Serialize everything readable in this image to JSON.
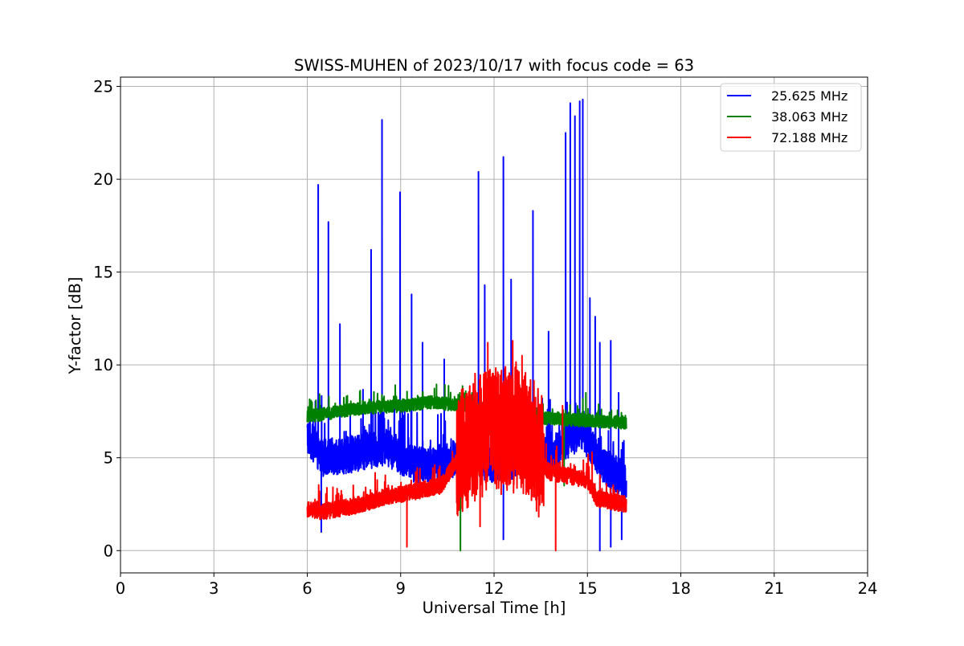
{
  "chart_data": {
    "type": "line",
    "title": "SWISS-MUHEN of 2023/10/17 with focus code = 63",
    "xlabel": "Universal Time [h]",
    "ylabel": "Y-factor [dB]",
    "xlim": [
      0,
      24
    ],
    "ylim": [
      -1.2,
      25.5
    ],
    "xticks": [
      0,
      3,
      6,
      9,
      12,
      15,
      18,
      21,
      24
    ],
    "yticks": [
      0,
      5,
      10,
      15,
      20,
      25
    ],
    "grid": true,
    "legend_position": "top-right",
    "series": [
      {
        "name": "25.625 MHz",
        "color": "#0000ff",
        "baseline": [
          [
            6.0,
            6.2
          ],
          [
            6.5,
            5.0
          ],
          [
            7.5,
            5.2
          ],
          [
            8.5,
            5.6
          ],
          [
            9.5,
            4.6
          ],
          [
            10.5,
            4.8
          ],
          [
            11.0,
            5.2
          ],
          [
            12.0,
            4.6
          ],
          [
            13.0,
            5.0
          ],
          [
            14.0,
            5.4
          ],
          [
            14.8,
            6.5
          ],
          [
            15.5,
            4.6
          ],
          [
            16.2,
            3.8
          ]
        ],
        "noise": 1.0,
        "spikes": [
          [
            6.35,
            19.7
          ],
          [
            6.68,
            17.7
          ],
          [
            7.05,
            12.2
          ],
          [
            8.05,
            16.2
          ],
          [
            8.4,
            23.2
          ],
          [
            8.98,
            19.3
          ],
          [
            9.35,
            13.8
          ],
          [
            9.7,
            11.2
          ],
          [
            10.4,
            10.3
          ],
          [
            11.5,
            20.4
          ],
          [
            11.7,
            14.3
          ],
          [
            12.3,
            21.2
          ],
          [
            12.55,
            14.6
          ],
          [
            13.25,
            18.3
          ],
          [
            13.75,
            11.8
          ],
          [
            14.3,
            22.5
          ],
          [
            14.45,
            24.1
          ],
          [
            14.6,
            23.4
          ],
          [
            14.75,
            24.2
          ],
          [
            14.85,
            24.3
          ],
          [
            15.08,
            13.6
          ],
          [
            15.25,
            12.6
          ],
          [
            15.4,
            11.2
          ],
          [
            15.75,
            11.3
          ],
          [
            16.0,
            8.5
          ]
        ],
        "dips": [
          [
            6.45,
            1.0
          ],
          [
            12.3,
            0.6
          ],
          [
            15.4,
            0.0
          ],
          [
            15.75,
            0.2
          ],
          [
            16.1,
            0.6
          ]
        ]
      },
      {
        "name": "38.063 MHz",
        "color": "#008000",
        "baseline": [
          [
            6.0,
            7.2
          ],
          [
            7.0,
            7.5
          ],
          [
            8.0,
            7.7
          ],
          [
            9.0,
            7.8
          ],
          [
            10.0,
            8.0
          ],
          [
            11.0,
            7.8
          ],
          [
            12.0,
            7.5
          ],
          [
            13.0,
            7.2
          ],
          [
            14.0,
            7.1
          ],
          [
            15.0,
            7.0
          ],
          [
            16.2,
            6.9
          ]
        ],
        "noise": 0.35,
        "spikes": [
          [
            14.95,
            8.5
          ],
          [
            10.9,
            8.5
          ]
        ],
        "dips": [
          [
            10.92,
            0.0
          ],
          [
            14.25,
            3.5
          ]
        ]
      },
      {
        "name": "72.188 MHz",
        "color": "#ff0000",
        "baseline": [
          [
            6.0,
            2.2
          ],
          [
            6.5,
            2.1
          ],
          [
            7.5,
            2.4
          ],
          [
            8.5,
            2.9
          ],
          [
            9.5,
            3.2
          ],
          [
            10.3,
            3.5
          ],
          [
            10.7,
            4.6
          ],
          [
            11.3,
            5.6
          ],
          [
            11.8,
            6.5
          ],
          [
            12.4,
            6.0
          ],
          [
            12.8,
            6.5
          ],
          [
            13.3,
            5.0
          ],
          [
            13.8,
            4.2
          ],
          [
            14.5,
            4.0
          ],
          [
            15.0,
            3.8
          ],
          [
            15.3,
            2.8
          ],
          [
            16.2,
            2.5
          ]
        ],
        "noise": 0.45,
        "burst_range": [
          10.8,
          13.6
        ],
        "burst_amp": 3.2,
        "spikes": [
          [
            11.8,
            11.2
          ],
          [
            12.6,
            11.3
          ],
          [
            12.9,
            10.5
          ],
          [
            13.55,
            7.6
          ],
          [
            14.2,
            7.8
          ],
          [
            15.15,
            5.3
          ]
        ],
        "dips": [
          [
            9.2,
            0.2
          ],
          [
            11.55,
            1.3
          ],
          [
            13.98,
            0.0
          ]
        ]
      }
    ]
  }
}
